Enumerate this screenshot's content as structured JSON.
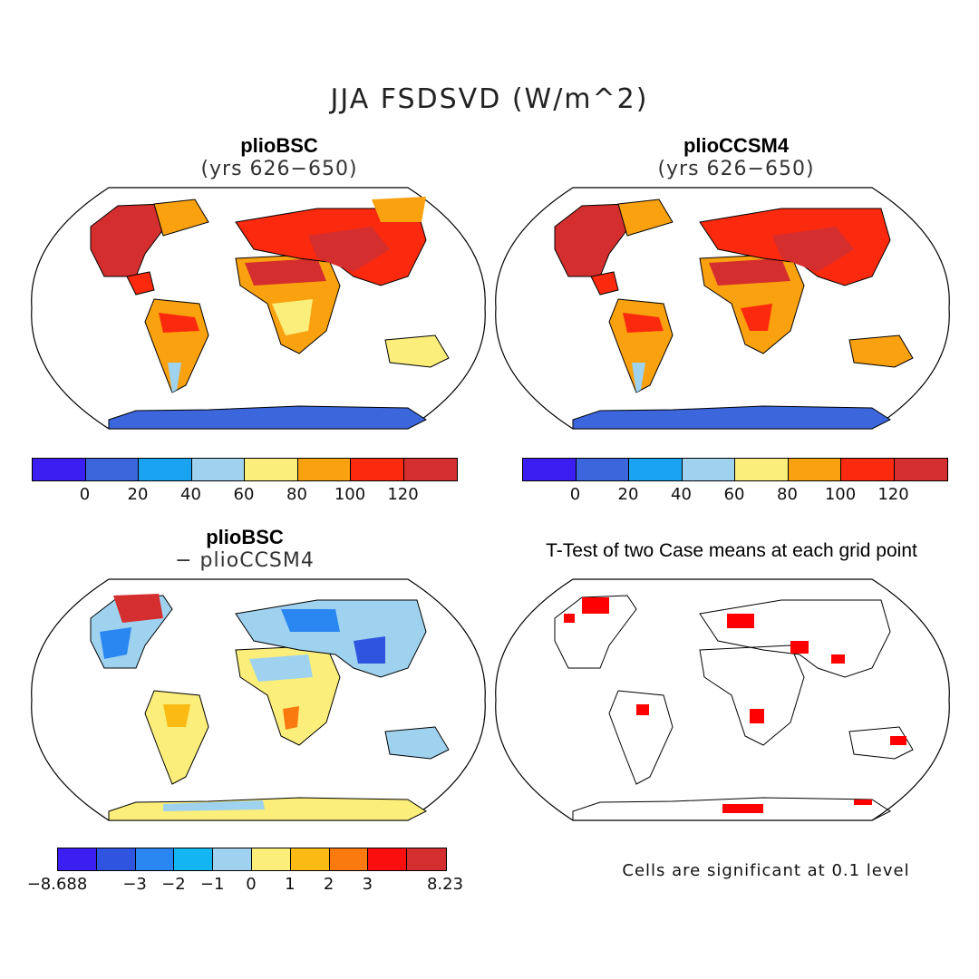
{
  "figure": {
    "main_title": "JJA FSDSVD (W/m^2)",
    "note": "Cells are significant at 0.1 level"
  },
  "panels": [
    {
      "title": "plioBSC",
      "subtitle": "(yrs 626−650)"
    },
    {
      "title": "plioCCSM4",
      "subtitle": "(yrs 626−650)"
    },
    {
      "title": "plioBSC",
      "subtitle": "− plioCCSM4"
    },
    {
      "title": "T-Test of two Case means at each grid point"
    }
  ],
  "colorbar_abs": {
    "colors": [
      "#3b1ff2",
      "#3b66dc",
      "#1aa3f0",
      "#9ed2ee",
      "#fbee7a",
      "#f9a10f",
      "#fb2a0f",
      "#d52e2e"
    ],
    "ticks": [
      "0",
      "20",
      "40",
      "60",
      "80",
      "100",
      "120"
    ]
  },
  "colorbar_diff": {
    "colors": [
      "#3b1ff2",
      "#2f55e0",
      "#2a86f0",
      "#14b6f2",
      "#9ed2ee",
      "#fbee7a",
      "#fbba14",
      "#fb7a0f",
      "#fb0e0e",
      "#d52e2e"
    ],
    "ticks": [
      "−8.688",
      "−3",
      "−2",
      "−1",
      "0",
      "1",
      "2",
      "3",
      "8.23"
    ]
  },
  "map_colors": {
    "land_outline": "#000000",
    "ocean": "#ffffff",
    "significant": "#ff0000"
  }
}
